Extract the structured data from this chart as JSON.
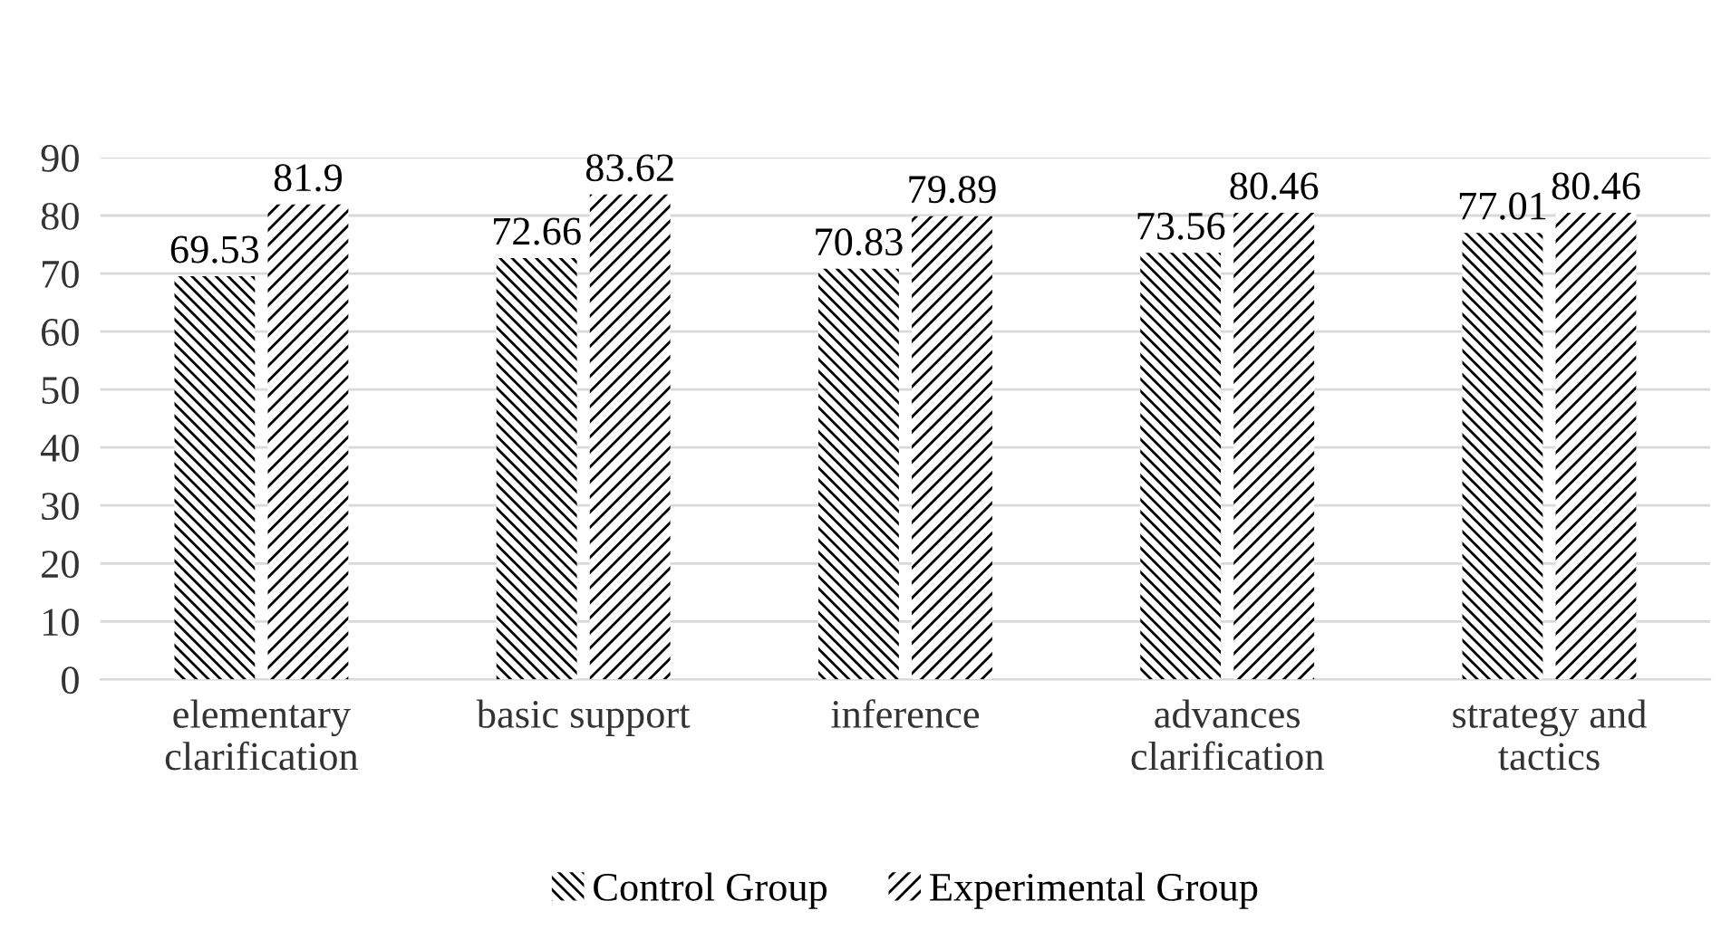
{
  "chart_data": {
    "type": "bar",
    "categories": [
      "elementary\nclarification",
      "basic support",
      "inference",
      "advances\nclarification",
      "strategy and\ntactics"
    ],
    "series": [
      {
        "name": "Control Group",
        "color": "#000000",
        "values": [
          69.53,
          72.66,
          70.83,
          73.56,
          77.01
        ]
      },
      {
        "name": "Experimental Group",
        "color": "#000000",
        "values": [
          81.9,
          83.62,
          79.89,
          80.46,
          80.46
        ]
      }
    ],
    "ylim": [
      0,
      90
    ],
    "yticks": [
      0,
      10,
      20,
      30,
      40,
      50,
      60,
      70,
      80,
      90
    ],
    "grid": "y",
    "legend": "bottom",
    "data_labels": true
  }
}
